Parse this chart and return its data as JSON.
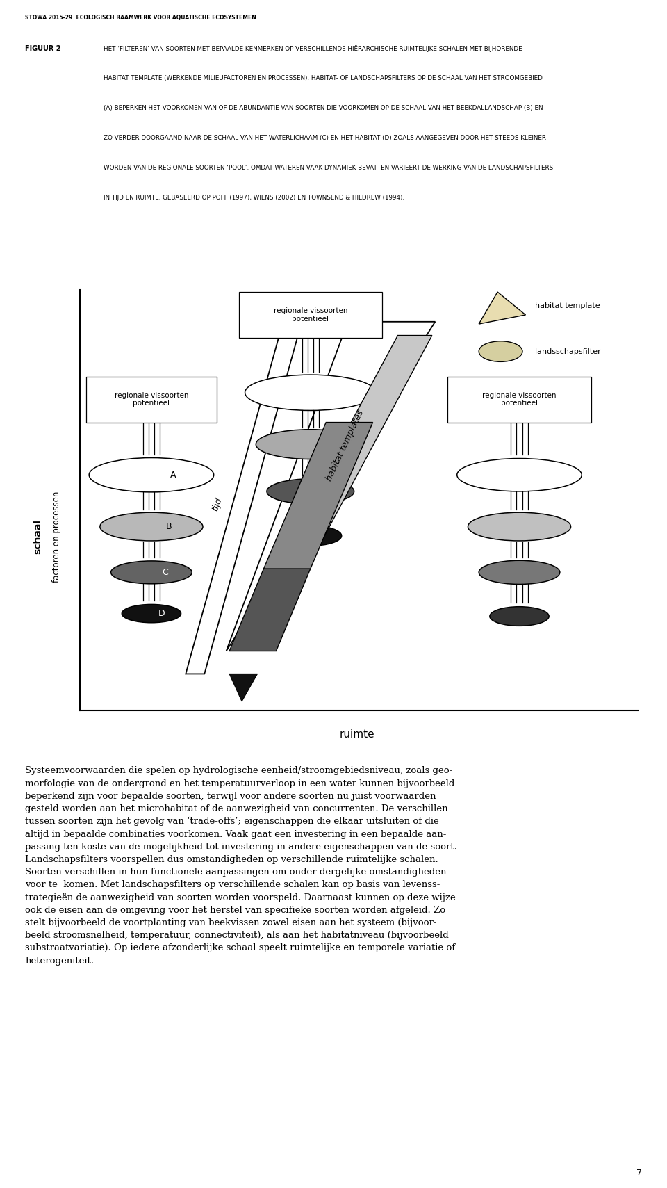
{
  "page_header": "STOWA 2015-29  ECOLOGISCH RAAMWERK VOOR AQUATISCHE ECOSYSTEMEN",
  "figure_label": "FIGUUR 2",
  "caption_lines": [
    "HET ‘FILTEREN’ VAN SOORTEN MET BEPAALDE KENMERKEN OP VERSCHILLENDE HIËRARCHISCHE RUIMTELIJKE SCHALEN MET BIJHORENDE",
    "HABITAT TEMPLATE (WERKENDE MILIEUFACTOREN EN PROCESSEN). HABITAT- OF LANDSCHAPSFILTERS OP DE SCHAAL VAN HET STROOMGEBIED",
    "(A) BEPERKEN HET VOORKOMEN VAN OF DE ABUNDANTIE VAN SOORTEN DIE VOORKOMEN OP DE SCHAAL VAN HET BEEKDALLANDSCHAP (B) EN",
    "ZO VERDER DOORGAAND NAAR DE SCHAAL VAN HET WATERLICHAAM (C) EN HET HABITAT (D) ZOALS AANGEGEVEN DOOR HET STEEDS KLEINER",
    "WORDEN VAN DE REGIONALE SOORTEN ‘POOL’. OMDAT WATEREN VAAK DYNAMIEK BEVATTEN VARIEERT DE WERKING VAN DE LANDSCHAPSFILTERS",
    "IN TIJD EN RUIMTE. GEBASEERD OP POFF (1997), WIENS (2002) EN TOWNSEND & HILDREW (1994)."
  ],
  "y_axis_label1": "schaal",
  "y_axis_label2": "factoren en processen",
  "x_axis_label": "ruimte",
  "body_text": "Systeemvoorwaarden die spelen op hydrologische eenheid/stroomgebiedsniveau, zoals geo-\nmorfologie van de ondergrond en het temperatuurverloop in een water kunnen bijvoorbeeld\nbeperkend zijn voor bepaalde soorten, terwijl voor andere soorten nu juist voorwaarden\ngesteld worden aan het microhabitat of de aanwezigheid van concurrenten. De verschillen\ntussen soorten zijn het gevolg van ‘trade-offs’; eigenschappen die elkaar uitsluiten of die\naltijd in bepaalde combinaties voorkomen. Vaak gaat een investering in een bepaalde aan-\npassing ten koste van de mogelijkheid tot investering in andere eigenschappen van de soort.\nLandschapsfilters voorspellen dus omstandigheden op verschillende ruimtelijke schalen.\nSoorten verschillen in hun functionele aanpassingen om onder dergelijke omstandigheden\nvoor te  komen. Met landschapsfilters op verschillende schalen kan op basis van levenss-\ntrategieën de aanwezigheid van soorten worden voorspeld. Daarnaast kunnen op deze wijze\nook de eisen aan de omgeving voor het herstel van specifieke soorten worden afgeleid. Zo\nstelt bijvoorbeeld de voortplanting van beekvissen zowel eisen aan het systeem (bijvoor-\nbeeld stroomsnelheid, temperatuur, connectiviteit), als aan het habitatniveau (bijvoorbeeld\nsubstraatvariatie). Op iedere afzonderlijke schaal speelt ruimtelijke en temporele variatie of\nheterogeniteit.",
  "page_number": "7",
  "background_color": "#ffffff"
}
